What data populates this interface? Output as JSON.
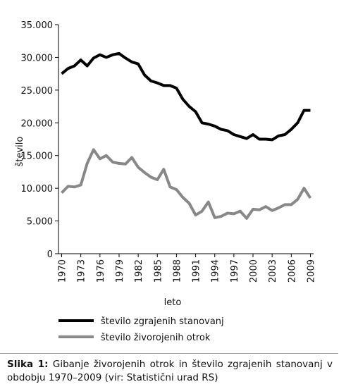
{
  "chart_data": {
    "type": "line",
    "x": [
      1970,
      1971,
      1972,
      1973,
      1974,
      1975,
      1976,
      1977,
      1978,
      1979,
      1980,
      1981,
      1982,
      1983,
      1984,
      1985,
      1986,
      1987,
      1988,
      1989,
      1990,
      1991,
      1992,
      1993,
      1994,
      1995,
      1996,
      1997,
      1998,
      1999,
      2000,
      2001,
      2002,
      2003,
      2004,
      2005,
      2006,
      2007,
      2008,
      2009
    ],
    "series": [
      {
        "name": "število zgrajenih stanovanj",
        "color": "#000000",
        "values": [
          27500,
          28300,
          28700,
          29600,
          28700,
          29900,
          30400,
          30000,
          30400,
          30600,
          29900,
          29300,
          29000,
          27300,
          26400,
          26100,
          25700,
          25700,
          25300,
          23600,
          22500,
          21700,
          20000,
          19800,
          19500,
          19000,
          18800,
          18200,
          17900,
          17600,
          18200,
          17500,
          17500,
          17400,
          18000,
          18200,
          19000,
          20000,
          21900,
          21900
        ]
      },
      {
        "name": "število živorojenih otrok",
        "color": "#888888",
        "values": [
          9300,
          10300,
          10200,
          10500,
          13800,
          15900,
          14500,
          15000,
          14000,
          13800,
          13700,
          14700,
          13200,
          12400,
          11700,
          11300,
          12900,
          10200,
          9800,
          8600,
          7700,
          5900,
          6500,
          7900,
          5500,
          5700,
          6200,
          6100,
          6500,
          5400,
          6800,
          6700,
          7200,
          6600,
          7000,
          7500,
          7500,
          8300,
          10000,
          8500
        ]
      }
    ],
    "xlim": [
      1969.5,
      2009.5
    ],
    "xticks": [
      1970,
      1973,
      1976,
      1979,
      1982,
      1985,
      1988,
      1991,
      1994,
      1997,
      2000,
      2003,
      2006,
      2009
    ],
    "ylim": [
      0,
      35000
    ],
    "yticks": [
      0,
      {
        "value": 5000,
        "label": "5.000"
      },
      {
        "value": 10000,
        "label": "10.000"
      },
      {
        "value": 15000,
        "label": "15.000"
      },
      {
        "value": 20000,
        "label": "20.000"
      },
      {
        "value": 25000,
        "label": "25.000"
      },
      {
        "value": 30000,
        "label": "30.000"
      },
      {
        "value": 35000,
        "label": "35.000"
      }
    ],
    "xlabel": "leto",
    "ylabel": "število",
    "grid": false,
    "caption": {
      "label": "Slika 1:",
      "text": "Gibanje živorojenih otrok in število zgrajenih stanovanj v obdobju 1970–2009 (vir: Statistični urad RS)"
    }
  }
}
